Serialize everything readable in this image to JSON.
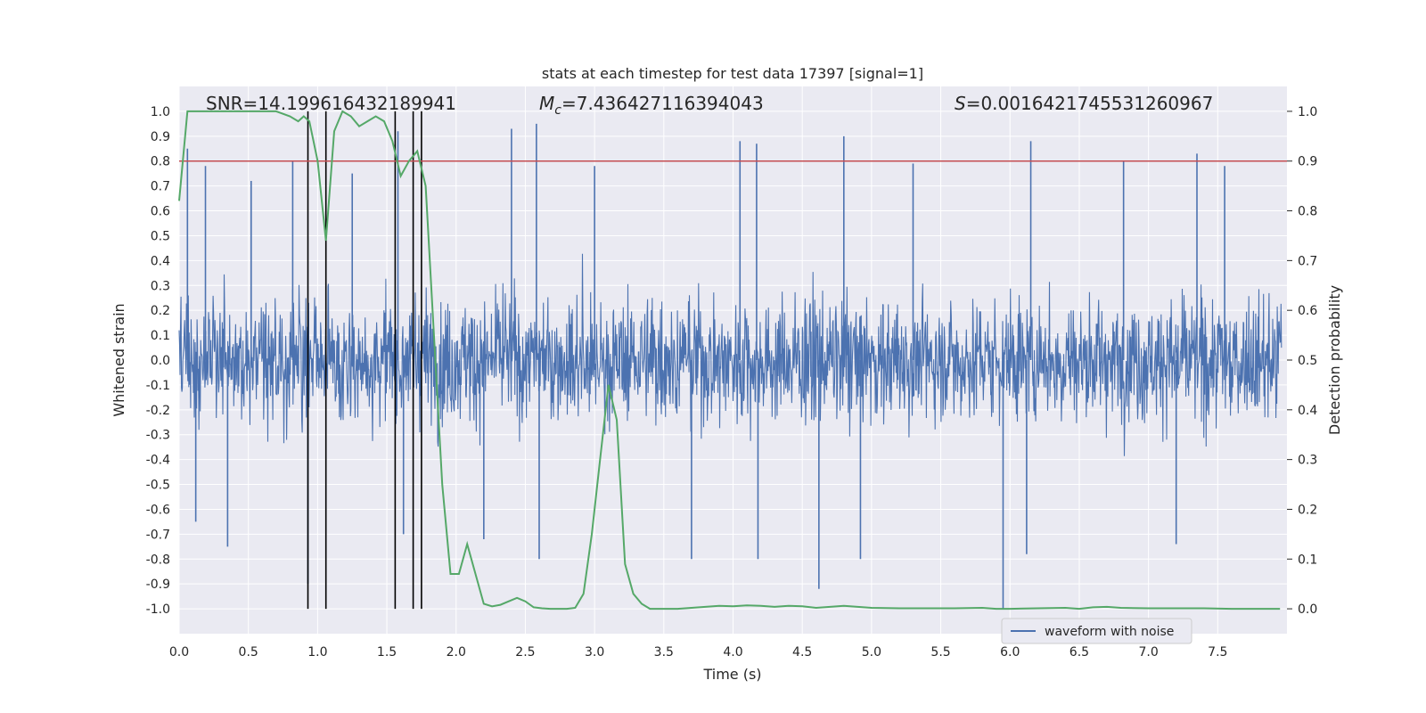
{
  "chart_data": {
    "type": "line",
    "title": "stats at each timestep for test data 17397 [signal=1]",
    "xlabel": "Time (s)",
    "ylabel_left": "Whitened strain",
    "ylabel_right": "Detection probability",
    "xlim": [
      0.0,
      8.0
    ],
    "ylim_left": [
      -1.1,
      1.1
    ],
    "ylim_right": [
      -0.05,
      1.05
    ],
    "x_ticks": [
      "0.0",
      "0.5",
      "1.0",
      "1.5",
      "2.0",
      "2.5",
      "3.0",
      "3.5",
      "4.0",
      "4.5",
      "5.0",
      "5.5",
      "6.0",
      "6.5",
      "7.0",
      "7.5"
    ],
    "y_ticks_left": [
      "1.0",
      "0.9",
      "0.8",
      "0.7",
      "0.6",
      "0.5",
      "0.4",
      "0.3",
      "0.2",
      "0.1",
      "0.0",
      "-0.1",
      "-0.2",
      "-0.3",
      "-0.4",
      "-0.5",
      "-0.6",
      "-0.7",
      "-0.8",
      "-0.9",
      "-1.0"
    ],
    "y_ticks_right": [
      "1.0",
      "0.9",
      "0.8",
      "0.7",
      "0.6",
      "0.5",
      "0.4",
      "0.3",
      "0.2",
      "0.1",
      "0.0"
    ],
    "annotations": {
      "snr": "SNR=14.199616432189941",
      "mc_symbol": "M",
      "mc_sub": "c",
      "mc_value": "=7.436427116394043",
      "s_symbol": "S",
      "s_value": "=0.0016421745531260967"
    },
    "legend": {
      "label": "waveform with noise",
      "position": "lower-right"
    },
    "threshold": {
      "value": 0.9,
      "axis": "right",
      "color": "#c44e52"
    },
    "vlines": [
      0.93,
      1.06,
      1.56,
      1.69,
      1.75
    ],
    "series": [
      {
        "name": "waveform with noise",
        "axis": "left",
        "color": "#4c72b0",
        "kind": "noise",
        "band": 0.38,
        "spikes": [
          [
            0.06,
            0.85
          ],
          [
            0.12,
            -0.65
          ],
          [
            0.19,
            0.78
          ],
          [
            0.35,
            -0.75
          ],
          [
            0.52,
            0.72
          ],
          [
            0.82,
            0.8
          ],
          [
            0.93,
            -0.9
          ],
          [
            1.25,
            0.75
          ],
          [
            1.58,
            0.92
          ],
          [
            1.62,
            -0.7
          ],
          [
            2.2,
            -0.72
          ],
          [
            2.4,
            0.93
          ],
          [
            2.58,
            0.95
          ],
          [
            2.6,
            -0.8
          ],
          [
            3.0,
            0.78
          ],
          [
            3.7,
            -0.8
          ],
          [
            4.05,
            0.88
          ],
          [
            4.17,
            0.87
          ],
          [
            4.18,
            -0.8
          ],
          [
            4.62,
            -0.92
          ],
          [
            4.8,
            0.9
          ],
          [
            4.92,
            -0.8
          ],
          [
            5.3,
            0.79
          ],
          [
            5.95,
            -1.0
          ],
          [
            6.12,
            -0.78
          ],
          [
            6.15,
            0.88
          ],
          [
            6.82,
            0.8
          ],
          [
            7.35,
            0.83
          ],
          [
            7.2,
            -0.74
          ],
          [
            7.55,
            0.78
          ]
        ]
      },
      {
        "name": "Detection probability",
        "axis": "right",
        "color": "#55a868",
        "x": [
          0.0,
          0.06,
          0.12,
          0.3,
          0.5,
          0.7,
          0.8,
          0.86,
          0.9,
          0.94,
          1.0,
          1.06,
          1.12,
          1.18,
          1.24,
          1.3,
          1.36,
          1.42,
          1.48,
          1.54,
          1.6,
          1.66,
          1.72,
          1.78,
          1.84,
          1.9,
          1.96,
          2.02,
          2.08,
          2.14,
          2.2,
          2.26,
          2.32,
          2.38,
          2.44,
          2.5,
          2.56,
          2.62,
          2.68,
          2.74,
          2.8,
          2.86,
          2.92,
          2.98,
          3.04,
          3.1,
          3.16,
          3.22,
          3.28,
          3.34,
          3.4,
          3.5,
          3.6,
          3.7,
          3.8,
          3.9,
          4.0,
          4.1,
          4.2,
          4.3,
          4.4,
          4.5,
          4.6,
          4.7,
          4.8,
          4.9,
          5.0,
          5.2,
          5.4,
          5.6,
          5.8,
          5.9,
          6.0,
          6.2,
          6.4,
          6.5,
          6.6,
          6.7,
          6.8,
          7.0,
          7.2,
          7.4,
          7.6,
          7.8,
          7.95
        ],
        "y": [
          0.82,
          1.0,
          1.0,
          1.0,
          1.0,
          1.0,
          0.99,
          0.98,
          0.99,
          0.98,
          0.9,
          0.74,
          0.96,
          1.0,
          0.99,
          0.97,
          0.98,
          0.99,
          0.98,
          0.94,
          0.87,
          0.9,
          0.92,
          0.85,
          0.55,
          0.25,
          0.07,
          0.07,
          0.13,
          0.07,
          0.01,
          0.005,
          0.008,
          0.015,
          0.022,
          0.015,
          0.003,
          0.001,
          0.0,
          0.0,
          0.0,
          0.002,
          0.03,
          0.15,
          0.3,
          0.45,
          0.38,
          0.09,
          0.03,
          0.01,
          0.0,
          0.0,
          0.0,
          0.002,
          0.004,
          0.006,
          0.005,
          0.007,
          0.006,
          0.004,
          0.006,
          0.005,
          0.002,
          0.004,
          0.006,
          0.004,
          0.002,
          0.001,
          0.001,
          0.001,
          0.002,
          0.0,
          0.0,
          0.001,
          0.002,
          0.0,
          0.003,
          0.004,
          0.002,
          0.001,
          0.001,
          0.001,
          0.0,
          0.0,
          0.0
        ]
      }
    ]
  }
}
